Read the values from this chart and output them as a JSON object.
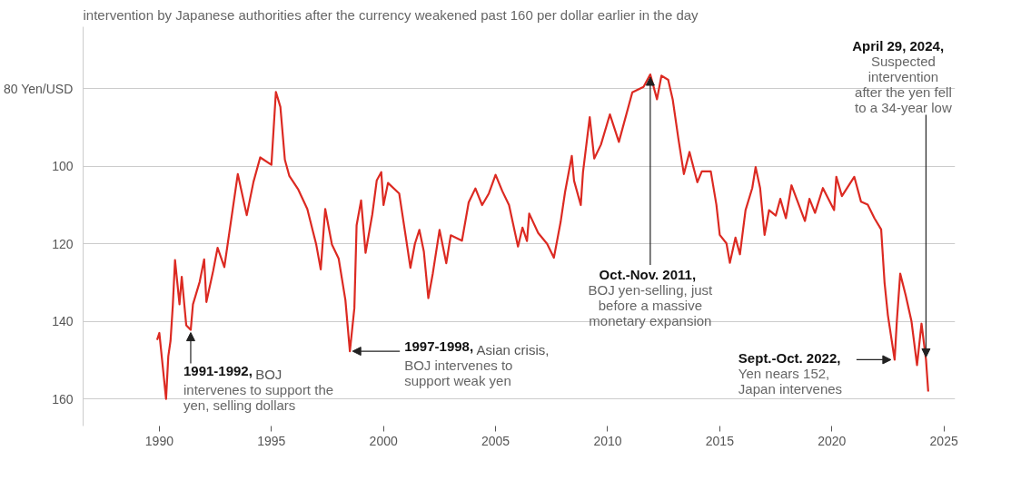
{
  "chart_data": {
    "type": "line",
    "subtitle": "intervention by Japanese authorities after the currency weakened past 160 per dollar earlier in the day",
    "color": "#dc2a22",
    "line_style": "solid",
    "grid": "y",
    "xlim": [
      1986.6,
      2025.5
    ],
    "ylim": [
      167,
      64
    ],
    "xticks": [
      1990,
      1995,
      2000,
      2005,
      2010,
      2015,
      2020,
      2025
    ],
    "yticks": [
      {
        "value": 80,
        "label": "80 Yen/USD"
      },
      100,
      120,
      140,
      160
    ],
    "x": [
      1989.9,
      1990.0,
      1990.3,
      1990.4,
      1990.5,
      1990.6,
      1990.7,
      1990.9,
      1991.0,
      1991.2,
      1991.4,
      1991.5,
      1991.8,
      1992.0,
      1992.1,
      1992.4,
      1992.6,
      1992.9,
      1993.2,
      1993.5,
      1993.9,
      1994.2,
      1994.5,
      1995.0,
      1995.2,
      1995.4,
      1995.6,
      1995.8,
      1996.2,
      1996.6,
      1997.0,
      1997.2,
      1997.4,
      1997.7,
      1998.0,
      1998.3,
      1998.5,
      1998.7,
      1998.8,
      1999.0,
      1999.2,
      1999.5,
      1999.7,
      1999.9,
      2000.0,
      2000.2,
      2000.7,
      2001.0,
      2001.2,
      2001.4,
      2001.6,
      2001.8,
      2002.0,
      2002.2,
      2002.5,
      2002.8,
      2003.0,
      2003.5,
      2003.8,
      2004.1,
      2004.4,
      2004.7,
      2005.0,
      2005.3,
      2005.6,
      2006.0,
      2006.2,
      2006.4,
      2006.5,
      2006.9,
      2007.3,
      2007.6,
      2007.9,
      2008.1,
      2008.4,
      2008.5,
      2008.8,
      2008.9,
      2009.2,
      2009.4,
      2009.7,
      2010.1,
      2010.5,
      2011.1,
      2011.6,
      2011.9,
      2012.2,
      2012.4,
      2012.7,
      2012.9,
      2013.15,
      2013.4,
      2013.65,
      2014.0,
      2014.2,
      2014.6,
      2014.85,
      2015.0,
      2015.3,
      2015.45,
      2015.7,
      2015.9,
      2016.15,
      2016.45,
      2016.6,
      2016.8,
      2017.0,
      2017.2,
      2017.5,
      2017.7,
      2017.95,
      2018.2,
      2018.8,
      2019.0,
      2019.25,
      2019.6,
      2020.1,
      2020.2,
      2020.45,
      2021.0,
      2021.3,
      2021.6,
      2021.9,
      2022.2,
      2022.35,
      2022.5,
      2022.8,
      2022.9,
      2023.05,
      2023.3,
      2023.55,
      2023.8,
      2024.0,
      2024.2,
      2024.3
    ],
    "values": [
      144.8,
      143,
      160,
      149,
      145,
      136,
      124.2,
      135.6,
      128.5,
      141,
      142.2,
      135.6,
      129.8,
      124,
      135,
      127,
      121,
      126,
      114,
      102,
      112.6,
      104,
      97.7,
      99.6,
      80.8,
      84.7,
      98.3,
      102.5,
      106,
      111,
      120.2,
      126.6,
      111,
      120.2,
      123.8,
      134.5,
      147.7,
      136.6,
      115.2,
      108.8,
      122.3,
      112.4,
      103.6,
      101.5,
      110,
      104.3,
      107,
      118.4,
      126.2,
      120,
      116.4,
      122,
      134,
      127.6,
      116.4,
      125,
      117.8,
      119.2,
      109.3,
      105.7,
      110,
      107,
      102.2,
      106.4,
      110,
      120.7,
      115.8,
      119.3,
      112.2,
      117.2,
      120,
      123.6,
      114.4,
      106.6,
      97.3,
      103.7,
      110,
      101.5,
      87.3,
      98,
      94.4,
      86.6,
      93.7,
      80.9,
      79.5,
      76.3,
      82.7,
      76.6,
      77.7,
      82.7,
      92.7,
      102,
      96.3,
      104.1,
      101.3,
      101.3,
      109.9,
      117.7,
      119.9,
      124.9,
      118.4,
      122.7,
      111.3,
      105.6,
      100.2,
      105.6,
      117.7,
      111.3,
      112.7,
      108.4,
      113.4,
      104.9,
      114.1,
      108.4,
      112,
      105.6,
      111.3,
      102.7,
      107.7,
      102.7,
      109.1,
      109.9,
      113.4,
      116.3,
      129.9,
      138.4,
      149.9,
      139.9,
      127.7,
      133.4,
      139.9,
      151.3,
      140.6,
      149.9,
      158.1
    ],
    "annotations": [
      {
        "text": "1991-1992, BOJ\nintervenes to support the\nyen, selling dollars",
        "x": 1991.4,
        "y": 142.2
      },
      {
        "text": "1997-1998, Asian crisis,\nBOJ intervenes to\nsupport weak yen",
        "x": 1998.5,
        "y": 147.7
      },
      {
        "text": "Oct.-Nov. 2011,\nBOJ yen-selling, just\nbefore a massive\nmonetary expansion",
        "x": 2011.9,
        "y": 76.3
      },
      {
        "text": "Sept.-Oct. 2022,\nYen nears 152,\nJapan intervenes",
        "x": 2022.8,
        "y": 149.9
      },
      {
        "text": "April 29, 2024,\nSuspected\nintervention\nafter the yen fell\nto a 34-year low",
        "x": 2024.2,
        "y": 149.9
      }
    ]
  }
}
